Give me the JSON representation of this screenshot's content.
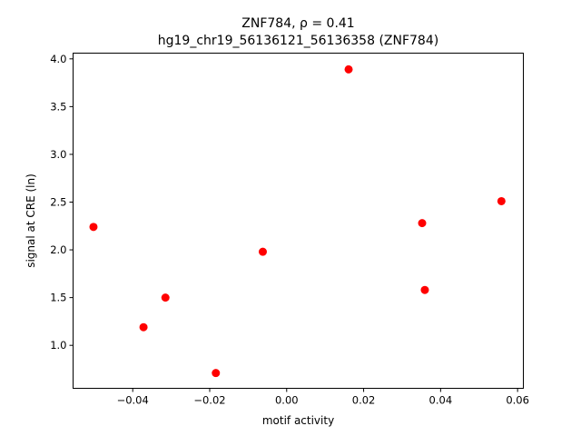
{
  "chart_data": {
    "type": "scatter",
    "title_line1": "ZNF784, ρ = 0.41",
    "title_line2": "hg19_chr19_56136121_56136358 (ZNF784)",
    "xlabel": "motif activity",
    "ylabel": "signal at CRE (ln)",
    "xlim": [
      -0.0555,
      0.0615
    ],
    "ylim": [
      0.55,
      4.06
    ],
    "x_ticks": [
      -0.04,
      -0.02,
      0.0,
      0.02,
      0.04,
      0.06
    ],
    "x_tick_labels": [
      "−0.04",
      "−0.02",
      "0.00",
      "0.02",
      "0.04",
      "0.06"
    ],
    "y_ticks": [
      1.0,
      1.5,
      2.0,
      2.5,
      3.0,
      3.5,
      4.0
    ],
    "y_tick_labels": [
      "1.0",
      "1.5",
      "2.0",
      "2.5",
      "3.0",
      "3.5",
      "4.0"
    ],
    "grid": false,
    "marker_color": "#ff0000",
    "points": [
      {
        "x": -0.0502,
        "y": 2.24
      },
      {
        "x": -0.0372,
        "y": 1.19
      },
      {
        "x": -0.0315,
        "y": 1.5
      },
      {
        "x": -0.0184,
        "y": 0.71
      },
      {
        "x": -0.0062,
        "y": 1.98
      },
      {
        "x": 0.0161,
        "y": 3.89
      },
      {
        "x": 0.0352,
        "y": 2.28
      },
      {
        "x": 0.0359,
        "y": 1.58
      },
      {
        "x": 0.0558,
        "y": 2.51
      }
    ]
  }
}
